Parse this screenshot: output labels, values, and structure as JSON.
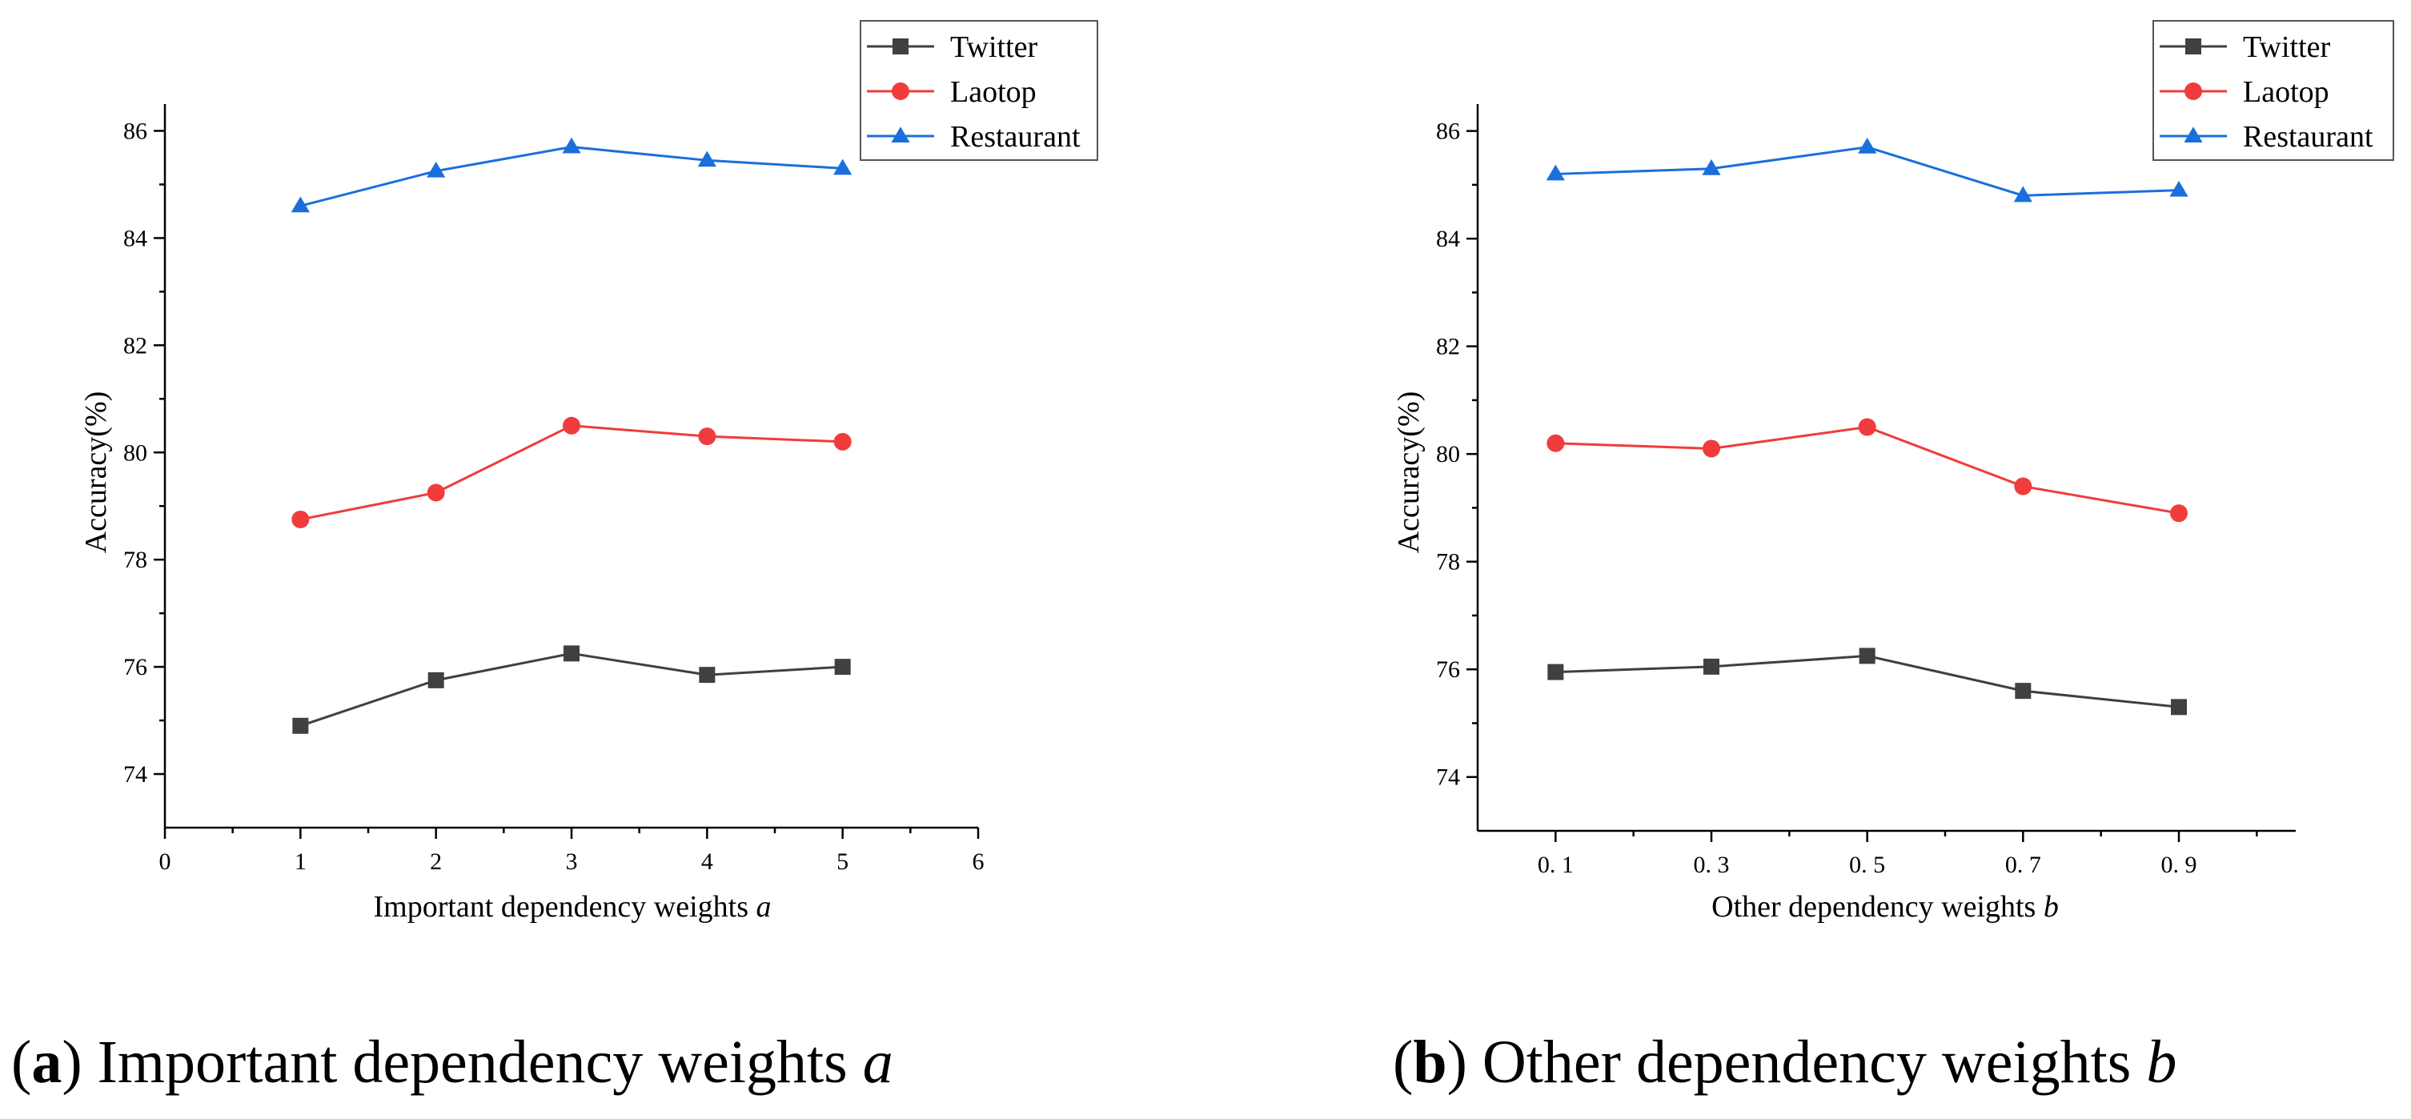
{
  "chart_data": [
    {
      "type": "line",
      "caption_letter": "a",
      "caption_text": "Important dependency weights",
      "caption_var": "a",
      "xlabel": "Important dependency weights",
      "xlabel_var": "a",
      "ylabel": "Accuracy(%)",
      "x": [
        1,
        2,
        3,
        4,
        5
      ],
      "xlim": [
        0,
        6
      ],
      "xticks": [
        0,
        1,
        2,
        3,
        4,
        5,
        6
      ],
      "xtick_labels": [
        "0",
        "1",
        "2",
        "3",
        "4",
        "5",
        "6"
      ],
      "ylim": [
        73,
        86.5
      ],
      "yticks": [
        74,
        76,
        78,
        80,
        82,
        84,
        86
      ],
      "ytick_labels": [
        "74",
        "76",
        "78",
        "80",
        "82",
        "84",
        "86"
      ],
      "legend_position": "top-right",
      "series": [
        {
          "name": "Twitter",
          "color": "#404040",
          "marker": "square",
          "values": [
            74.9,
            75.75,
            76.25,
            75.85,
            76.0
          ]
        },
        {
          "name": "Laotop",
          "color": "#f03c3c",
          "marker": "circle",
          "values": [
            78.75,
            79.25,
            80.5,
            80.3,
            80.2
          ]
        },
        {
          "name": "Restaurant",
          "color": "#1a6fdc",
          "marker": "triangle",
          "values": [
            84.6,
            85.25,
            85.7,
            85.45,
            85.3
          ]
        }
      ]
    },
    {
      "type": "line",
      "caption_letter": "b",
      "caption_text": "Other dependency weights",
      "caption_var": "b",
      "xlabel": "Other dependency weights",
      "xlabel_var": "b",
      "ylabel": "Accuracy(%)",
      "x": [
        0.1,
        0.3,
        0.5,
        0.7,
        0.9
      ],
      "xlim": [
        0,
        1.05
      ],
      "xticks": [
        0.1,
        0.3,
        0.5,
        0.7,
        0.9
      ],
      "xtick_labels": [
        "0. 1",
        "0. 3",
        "0. 5",
        "0. 7",
        "0. 9"
      ],
      "xminor": [
        0.2,
        0.4,
        0.6,
        0.8,
        1.0
      ],
      "ylim": [
        73,
        86.5
      ],
      "yticks": [
        74,
        76,
        78,
        80,
        82,
        84,
        86
      ],
      "ytick_labels": [
        "74",
        "76",
        "78",
        "80",
        "82",
        "84",
        "86"
      ],
      "legend_position": "top-right",
      "series": [
        {
          "name": "Twitter",
          "color": "#404040",
          "marker": "square",
          "values": [
            75.95,
            76.05,
            76.25,
            75.6,
            75.3
          ]
        },
        {
          "name": "Laotop",
          "color": "#f03c3c",
          "marker": "circle",
          "values": [
            80.2,
            80.1,
            80.5,
            79.4,
            78.9
          ]
        },
        {
          "name": "Restaurant",
          "color": "#1a6fdc",
          "marker": "triangle",
          "values": [
            85.2,
            85.3,
            85.7,
            84.8,
            84.9
          ]
        }
      ]
    }
  ]
}
